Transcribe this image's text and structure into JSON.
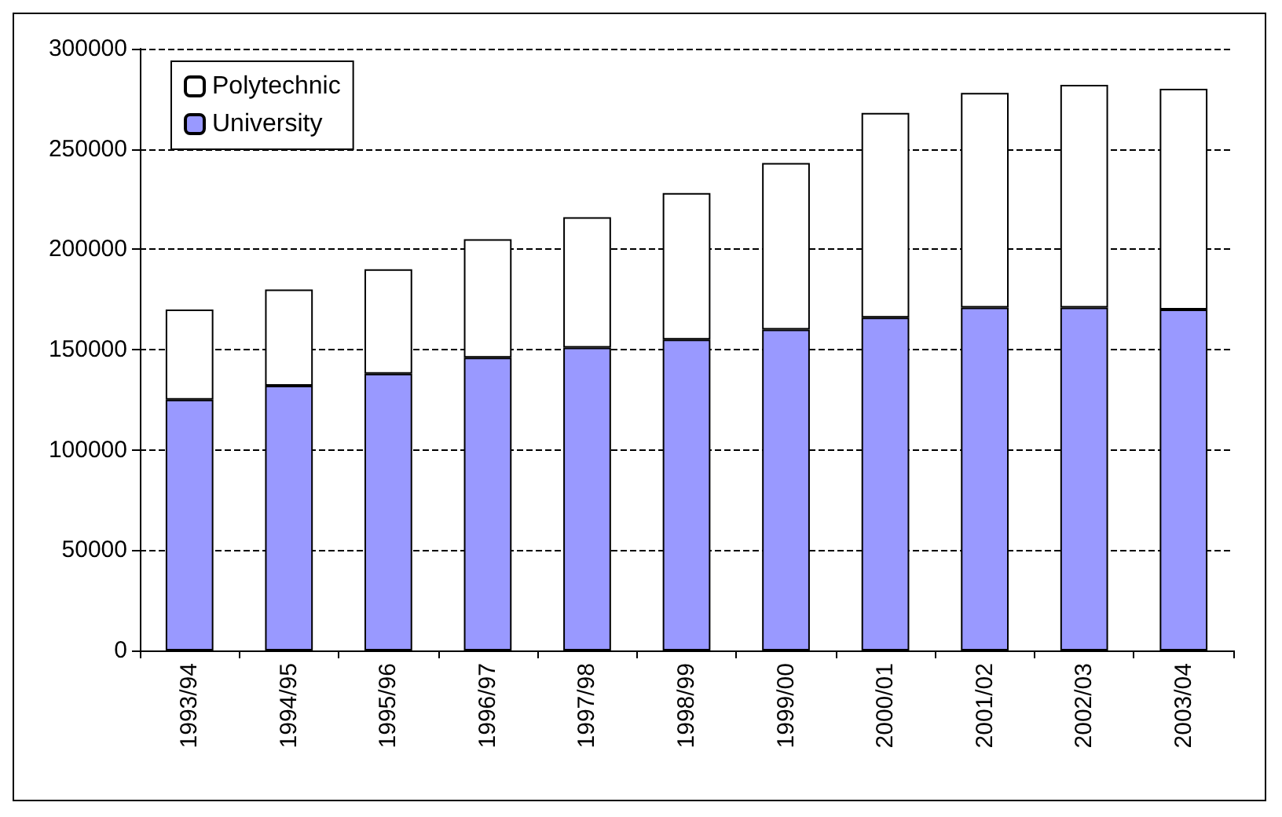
{
  "chart_data": {
    "type": "bar",
    "stacked": true,
    "categories": [
      "1993/94",
      "1994/95",
      "1995/96",
      "1996/97",
      "1997/98",
      "1998/99",
      "1999/00",
      "2000/01",
      "2001/02",
      "2002/03",
      "2003/04"
    ],
    "series": [
      {
        "name": "University",
        "color": "#9999ff",
        "values": [
          125000,
          132000,
          138000,
          146000,
          151000,
          155000,
          160000,
          166000,
          171000,
          171000,
          170000
        ]
      },
      {
        "name": "Polytechnic",
        "color": "#ffffff",
        "values": [
          45000,
          48000,
          52000,
          59000,
          65000,
          73000,
          83000,
          102000,
          107000,
          111000,
          110000
        ]
      }
    ],
    "ylim": [
      0,
      300000
    ],
    "yticks": [
      0,
      50000,
      100000,
      150000,
      200000,
      250000,
      300000
    ],
    "grid": "y",
    "legend": "top left"
  }
}
